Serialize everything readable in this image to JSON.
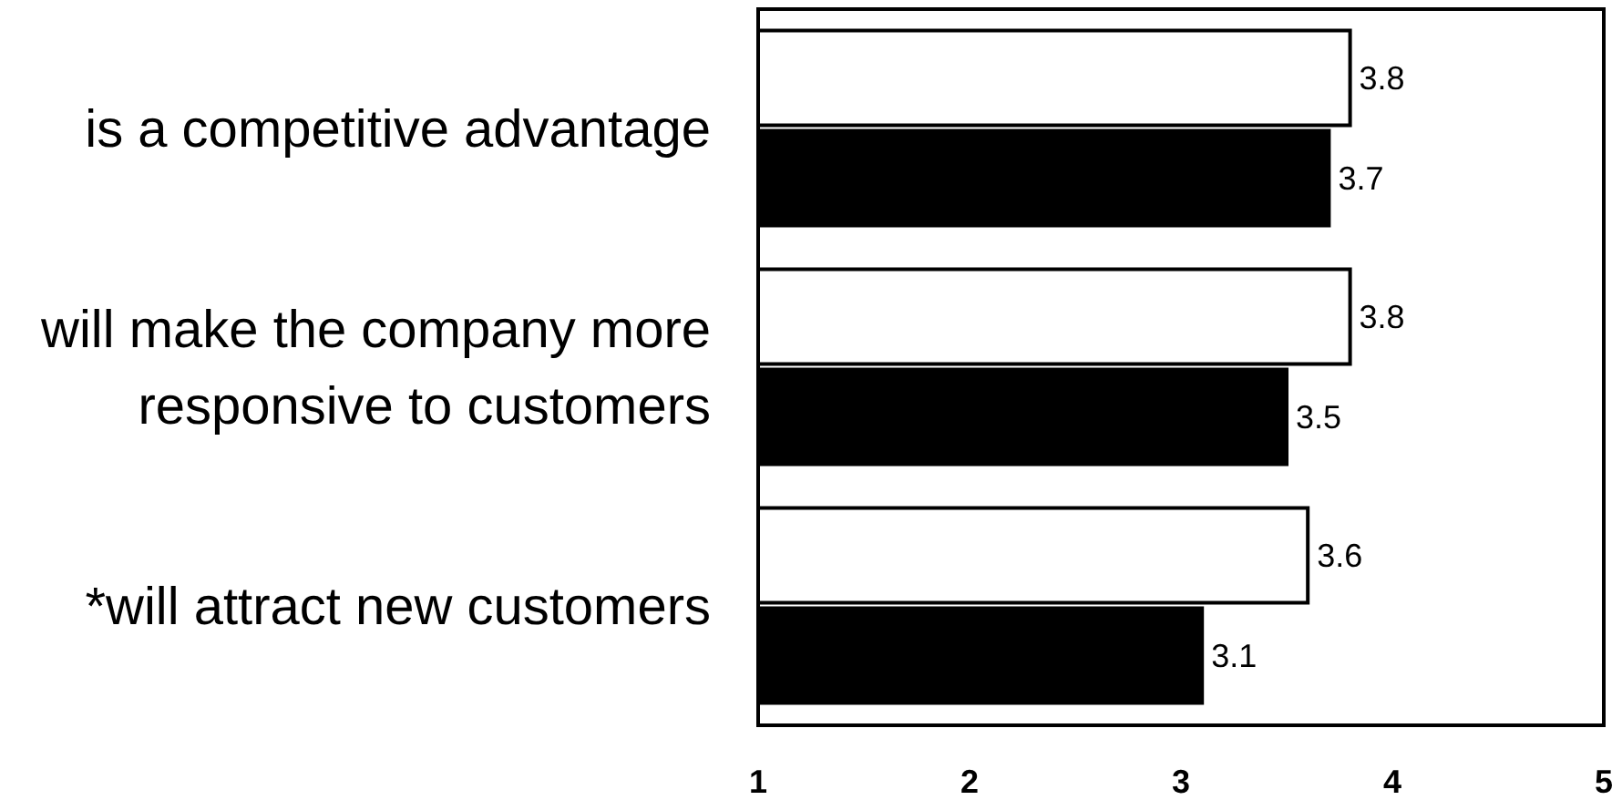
{
  "chart_data": {
    "type": "bar",
    "orientation": "horizontal",
    "categories": [
      "is a competitive advantage",
      "will make the company more responsive to customers",
      "*will attract new customers"
    ],
    "series": [
      {
        "color": "#ffffff",
        "values": [
          3.8,
          3.8,
          3.6
        ]
      },
      {
        "color": "#000000",
        "values": [
          3.7,
          3.5,
          3.1
        ]
      }
    ],
    "xlim": [
      1,
      5
    ],
    "xticks": [
      1,
      2,
      3,
      4,
      5
    ],
    "data_labels": true
  }
}
